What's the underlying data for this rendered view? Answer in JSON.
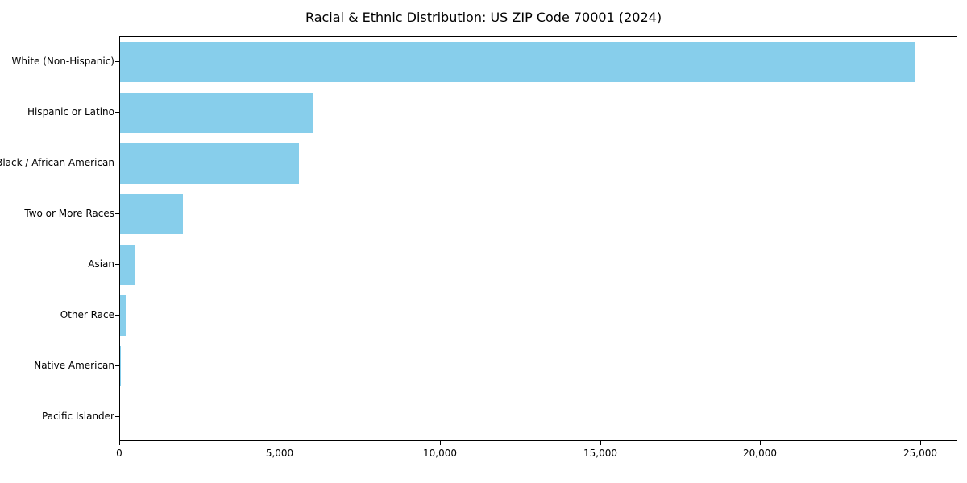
{
  "chart_data": {
    "type": "bar",
    "orientation": "horizontal",
    "title": "Racial & Ethnic Distribution: US ZIP Code 70001 (2024)",
    "categories": [
      "White (Non-Hispanic)",
      "Hispanic or Latino",
      "Black / African American",
      "Two or More Races",
      "Asian",
      "Other Race",
      "Native American",
      "Pacific Islander"
    ],
    "values": [
      24800,
      6000,
      5570,
      1950,
      480,
      170,
      30,
      10
    ],
    "xlabel": "",
    "ylabel": "",
    "xlim": [
      0,
      26100
    ],
    "x_ticks": [
      0,
      5000,
      10000,
      15000,
      20000,
      25000
    ],
    "x_tick_labels": [
      "0",
      "5,000",
      "10,000",
      "15,000",
      "20,000",
      "25,000"
    ],
    "bar_color": "#87CEEB",
    "background_color": "#ffffff",
    "grid": false,
    "legend": "none"
  }
}
